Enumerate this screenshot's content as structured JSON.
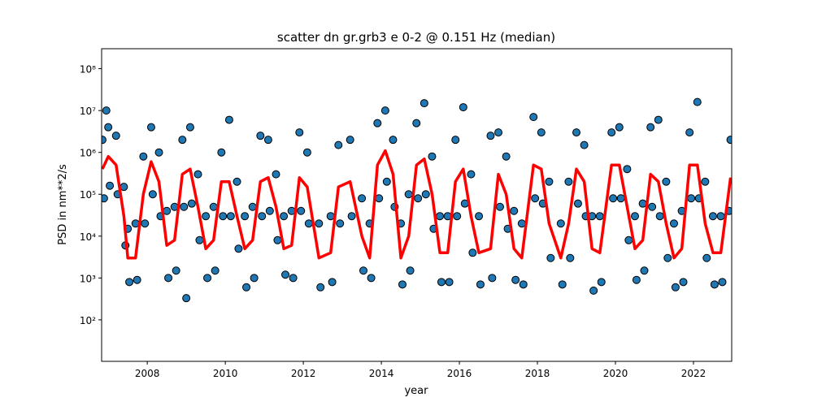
{
  "chart_data": {
    "type": "scatter",
    "title": "scatter dn gr.grb3 e 0-2 @ 0.151 Hz (median)",
    "xlabel": "year",
    "ylabel": "PSD in nm**2/s",
    "log_y": true,
    "xlim": [
      2006.83,
      2022.98
    ],
    "ylim": [
      10.2,
      300000000
    ],
    "xticks": [
      2008,
      2010,
      2012,
      2014,
      2016,
      2018,
      2020,
      2022
    ],
    "yticks": [
      {
        "value": 100,
        "label": "10²"
      },
      {
        "value": 1000,
        "label": "10³"
      },
      {
        "value": 10000,
        "label": "10⁴"
      },
      {
        "value": 100000,
        "label": "10⁵"
      },
      {
        "value": 1000000,
        "label": "10⁶"
      },
      {
        "value": 10000000,
        "label": "10⁷"
      },
      {
        "value": 100000000,
        "label": "10⁸"
      }
    ],
    "color": "#1f77b4",
    "edgecolor": "#000000",
    "x": [
      2006.85,
      2006.89,
      2007.0,
      2007.04,
      2007.2,
      2007.24,
      2007.4,
      2007.44,
      2007.5,
      2007.54,
      2007.7,
      2007.74,
      2007.9,
      2007.94,
      2008.1,
      2008.14,
      2008.3,
      2008.34,
      2008.5,
      2008.54,
      2008.7,
      2008.74,
      2008.9,
      2008.94,
      2009.1,
      2009.14,
      2009.3,
      2009.34,
      2009.5,
      2009.54,
      2009.7,
      2009.74,
      2009.9,
      2009.94,
      2010.1,
      2010.14,
      2010.3,
      2010.34,
      2010.5,
      2010.54,
      2010.7,
      2010.74,
      2010.9,
      2010.94,
      2011.1,
      2011.14,
      2011.3,
      2011.34,
      2011.5,
      2011.54,
      2011.7,
      2011.74,
      2011.9,
      2011.94,
      2012.1,
      2012.14,
      2012.4,
      2012.44,
      2012.7,
      2012.74,
      2012.9,
      2012.94,
      2013.2,
      2013.24,
      2013.5,
      2013.54,
      2013.7,
      2013.74,
      2013.9,
      2013.94,
      2014.1,
      2014.14,
      2014.3,
      2014.34,
      2014.5,
      2014.54,
      2014.7,
      2014.74,
      2014.9,
      2014.94,
      2015.1,
      2015.14,
      2015.3,
      2015.34,
      2015.5,
      2015.54,
      2015.7,
      2015.74,
      2015.9,
      2015.94,
      2016.1,
      2016.14,
      2016.3,
      2016.34,
      2016.5,
      2016.54,
      2016.8,
      2016.84,
      2017.0,
      2017.04,
      2017.2,
      2017.24,
      2017.4,
      2017.44,
      2017.6,
      2017.64,
      2017.9,
      2017.94,
      2018.1,
      2018.14,
      2018.3,
      2018.34,
      2018.6,
      2018.64,
      2018.8,
      2018.84,
      2019.0,
      2019.04,
      2019.2,
      2019.24,
      2019.4,
      2019.44,
      2019.6,
      2019.64,
      2019.9,
      2019.94,
      2020.1,
      2020.14,
      2020.3,
      2020.34,
      2020.5,
      2020.54,
      2020.7,
      2020.74,
      2020.9,
      2020.94,
      2021.1,
      2021.14,
      2021.3,
      2021.34,
      2021.5,
      2021.54,
      2021.7,
      2021.74,
      2021.9,
      2021.94,
      2022.1,
      2022.14,
      2022.3,
      2022.34,
      2022.5,
      2022.54,
      2022.7,
      2022.74,
      2022.95,
      2022.91,
      2006.95,
      2009.0
    ],
    "values": [
      2000000,
      80000,
      4000000,
      160000,
      2500000,
      100000,
      150000,
      6000,
      15000,
      800,
      20000,
      900,
      800000,
      20000,
      4000000,
      100000,
      1000000,
      30000,
      40000,
      1000,
      50000,
      1500,
      2000000,
      50000,
      4000000,
      60000,
      300000,
      8000,
      30000,
      1000,
      50000,
      1500,
      1000000,
      30000,
      6000000,
      30000,
      200000,
      5000,
      30000,
      600,
      50000,
      1000,
      2500000,
      30000,
      2000000,
      40000,
      300000,
      8000,
      30000,
      1200,
      40000,
      1000,
      3000000,
      40000,
      1000000,
      20000,
      20000,
      600,
      30000,
      800,
      1500000,
      20000,
      2000000,
      30000,
      80000,
      1500,
      20000,
      1000,
      5000000,
      80000,
      10000000,
      200000,
      2000000,
      50000,
      20000,
      700,
      100000,
      1500,
      5000000,
      80000,
      15000000,
      100000,
      800000,
      15000,
      30000,
      800,
      30000,
      800,
      2000000,
      30000,
      12000000,
      60000,
      300000,
      4000,
      30000,
      700,
      2500000,
      1000,
      3000000,
      50000,
      800000,
      15000,
      40000,
      900,
      20000,
      700,
      7000000,
      80000,
      3000000,
      60000,
      200000,
      3000,
      20000,
      700,
      200000,
      3000,
      3000000,
      60000,
      1500000,
      30000,
      30000,
      500,
      30000,
      800,
      3000000,
      80000,
      4000000,
      80000,
      400000,
      8000,
      30000,
      900,
      60000,
      1500,
      4000000,
      50000,
      6000000,
      30000,
      200000,
      3000,
      20000,
      600,
      40000,
      800,
      3000000,
      80000,
      16000000,
      80000,
      200000,
      3000,
      30000,
      700,
      30000,
      800,
      2000000,
      40000,
      10000000,
      330
    ],
    "median": {
      "color": "#ff0000",
      "x": [
        2006.85,
        2007.0,
        2007.2,
        2007.4,
        2007.5,
        2007.7,
        2007.9,
        2008.1,
        2008.3,
        2008.5,
        2008.7,
        2008.9,
        2009.1,
        2009.3,
        2009.5,
        2009.7,
        2009.9,
        2010.1,
        2010.3,
        2010.5,
        2010.7,
        2010.9,
        2011.1,
        2011.3,
        2011.5,
        2011.7,
        2011.9,
        2012.1,
        2012.4,
        2012.7,
        2012.9,
        2013.2,
        2013.5,
        2013.7,
        2013.9,
        2014.1,
        2014.3,
        2014.5,
        2014.7,
        2014.9,
        2015.1,
        2015.3,
        2015.5,
        2015.7,
        2015.9,
        2016.1,
        2016.3,
        2016.5,
        2016.8,
        2017.0,
        2017.2,
        2017.4,
        2017.6,
        2017.9,
        2018.1,
        2018.3,
        2018.6,
        2018.8,
        2019.0,
        2019.2,
        2019.4,
        2019.6,
        2019.9,
        2020.1,
        2020.3,
        2020.5,
        2020.7,
        2020.9,
        2021.1,
        2021.3,
        2021.5,
        2021.7,
        2021.9,
        2022.1,
        2022.3,
        2022.5,
        2022.7,
        2022.95
      ],
      "values": [
        400000,
        800000,
        500000,
        30000,
        3000,
        3000,
        100000,
        600000,
        200000,
        6000,
        8000,
        300000,
        400000,
        50000,
        5000,
        8000,
        200000,
        200000,
        30000,
        5000,
        8000,
        200000,
        250000,
        50000,
        5000,
        6000,
        250000,
        150000,
        3000,
        4000,
        150000,
        200000,
        10000,
        3000,
        500000,
        1100000,
        300000,
        3000,
        10000,
        500000,
        700000,
        100000,
        4000,
        4000,
        200000,
        400000,
        30000,
        4000,
        5000,
        300000,
        100000,
        5000,
        3000,
        500000,
        400000,
        20000,
        3000,
        20000,
        400000,
        200000,
        5000,
        4000,
        500000,
        500000,
        50000,
        5000,
        8000,
        300000,
        200000,
        20000,
        3000,
        5000,
        500000,
        500000,
        20000,
        4000,
        4000,
        250000
      ]
    }
  }
}
